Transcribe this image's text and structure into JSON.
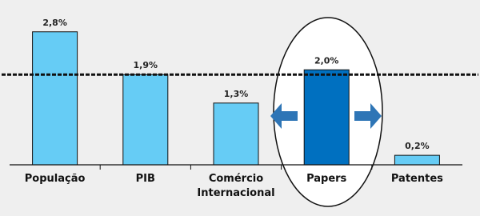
{
  "chart_data": {
    "type": "bar",
    "categories": [
      "População",
      "PIB",
      "Comércio Internacional",
      "Papers",
      "Patentes"
    ],
    "values": [
      2.8,
      1.9,
      1.3,
      2.0,
      0.2
    ],
    "value_labels": [
      "2,8%",
      "1,9%",
      "1,3%",
      "2,0%",
      "0,2%"
    ],
    "colors": [
      "#66ccf5",
      "#66ccf5",
      "#66ccf5",
      "#0070c0",
      "#66ccf5"
    ],
    "reference_line": 1.9,
    "ylim": [
      0,
      3.2
    ]
  }
}
